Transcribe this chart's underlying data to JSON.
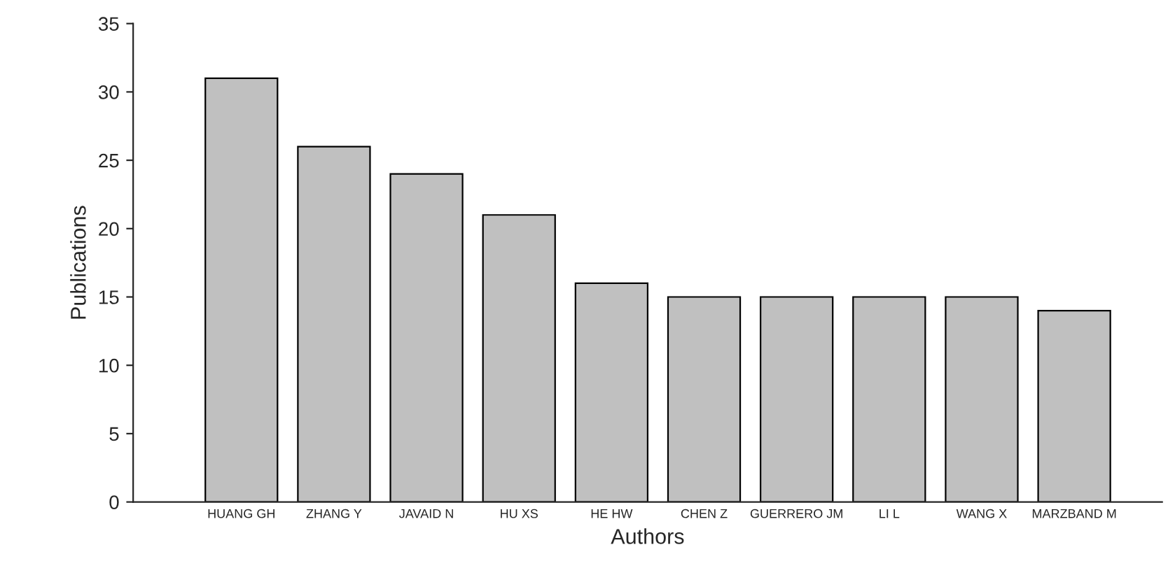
{
  "chart_data": {
    "type": "bar",
    "xlabel": "Authors",
    "ylabel": "Publications",
    "categories": [
      "HUANG GH",
      "ZHANG Y",
      "JAVAID N",
      "HU XS",
      "HE HW",
      "CHEN Z",
      "GUERRERO JM",
      "LI L",
      "WANG X",
      "MARZBAND M"
    ],
    "values": [
      31,
      26,
      24,
      21,
      16,
      15,
      15,
      15,
      15,
      14
    ],
    "color": "#c0c0c0",
    "ylim": [
      0,
      35
    ],
    "yticks": [
      0,
      5,
      10,
      15,
      20,
      25,
      30,
      35
    ],
    "grid": false,
    "legend": false
  }
}
